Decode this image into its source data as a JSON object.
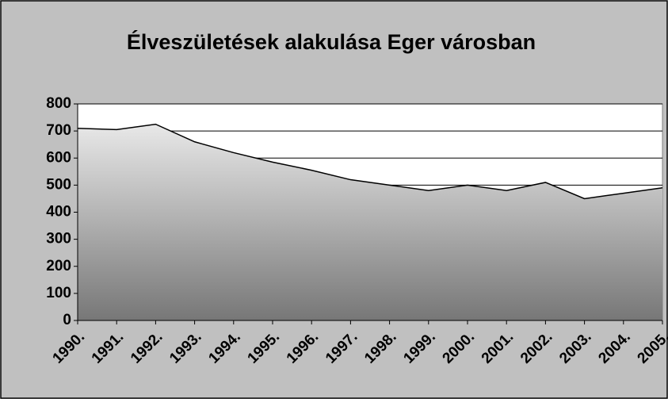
{
  "chart_data": {
    "type": "area",
    "title": "Élveszületések alakulása Eger városban",
    "categories": [
      "1990.",
      "1991.",
      "1992.",
      "1993.",
      "1994.",
      "1995.",
      "1996.",
      "1997.",
      "1998.",
      "1999.",
      "2000.",
      "2001.",
      "2002.",
      "2003.",
      "2004.",
      "2005."
    ],
    "values": [
      710,
      705,
      725,
      660,
      620,
      585,
      555,
      520,
      500,
      480,
      500,
      480,
      510,
      450,
      470,
      490
    ],
    "ylim": [
      0,
      800
    ],
    "yticks": [
      0,
      100,
      200,
      300,
      400,
      500,
      600,
      700,
      800
    ],
    "grid": true,
    "color": "#000000"
  }
}
